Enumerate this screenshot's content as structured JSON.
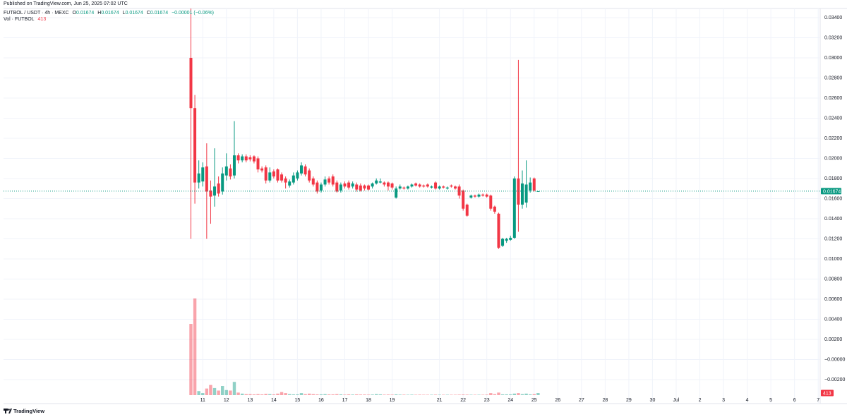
{
  "published": "Published on TradingView.com, Jun 25, 2025 07:02 UTC",
  "brand": "TradingView",
  "chart_data": {
    "type": "candlestick",
    "title": "FUTBOL / USDT · 4h · MEXC",
    "ohlc_keys": [
      "O",
      "H",
      "L",
      "C"
    ],
    "change": "−0.00001 (−0.06%)",
    "volume_title": "Vol · FUTBOL",
    "up_color": "#089981",
    "down_color": "#f23645",
    "grid": true,
    "open": [
      0.03,
      0.025,
      0.0176,
      0.0177,
      0.0192,
      0.0168,
      0.0163,
      0.0175,
      0.0167,
      0.0183,
      0.019,
      0.0183,
      0.0203,
      0.0198,
      0.0202,
      0.0201,
      0.0202,
      0.02,
      0.019,
      0.0191,
      0.0178,
      0.0187,
      0.0189,
      0.0184,
      0.018,
      0.0173,
      0.0176,
      0.018,
      0.0185,
      0.0192,
      0.0188,
      0.018,
      0.0176,
      0.0168,
      0.0174,
      0.018,
      0.0182,
      0.0176,
      0.0168,
      0.0175,
      0.0176,
      0.0172,
      0.0174,
      0.0173,
      0.0173,
      0.0173,
      0.0172,
      0.0175,
      0.0176,
      0.0176,
      0.0176,
      0.0175,
      0.0161,
      0.017,
      0.0171,
      0.017,
      0.0172,
      0.0175,
      0.0174,
      0.0173,
      0.0174,
      0.0171,
      0.0176,
      0.017,
      0.0172,
      0.017,
      0.0173,
      0.0172,
      0.0172,
      0.0168,
      0.0154,
      0.0161,
      0.0163,
      0.0162,
      0.0164,
      0.0164,
      0.0163,
      0.0152,
      0.0145,
      0.0113,
      0.0118,
      0.0119,
      0.0121,
      0.018,
      0.0154,
      0.0156,
      0.0168,
      0.018,
      0.01674
    ],
    "high": [
      0.0349,
      0.0263,
      0.0198,
      0.0196,
      0.0215,
      0.0178,
      0.021,
      0.0182,
      0.0191,
      0.0205,
      0.0194,
      0.0237,
      0.0205,
      0.0204,
      0.0204,
      0.0203,
      0.0203,
      0.0202,
      0.0192,
      0.0193,
      0.0191,
      0.0189,
      0.019,
      0.0186,
      0.0182,
      0.0179,
      0.0186,
      0.0188,
      0.0196,
      0.0194,
      0.019,
      0.0182,
      0.0178,
      0.0176,
      0.0182,
      0.0182,
      0.0184,
      0.0178,
      0.0176,
      0.0177,
      0.0178,
      0.0177,
      0.0176,
      0.0175,
      0.0174,
      0.0174,
      0.0176,
      0.018,
      0.018,
      0.0177,
      0.0177,
      0.0176,
      0.0172,
      0.0174,
      0.0172,
      0.0173,
      0.0175,
      0.0176,
      0.0175,
      0.0174,
      0.0175,
      0.0173,
      0.0177,
      0.0173,
      0.0173,
      0.0172,
      0.0174,
      0.0173,
      0.0174,
      0.0169,
      0.0155,
      0.0164,
      0.0164,
      0.0165,
      0.0165,
      0.0165,
      0.0164,
      0.0153,
      0.0146,
      0.0121,
      0.0121,
      0.0123,
      0.0182,
      0.0298,
      0.0188,
      0.0198,
      0.0181,
      0.0181,
      0.01674
    ],
    "low": [
      0.012,
      0.0155,
      0.017,
      0.0172,
      0.012,
      0.0135,
      0.0152,
      0.0162,
      0.0164,
      0.0178,
      0.0179,
      0.018,
      0.0195,
      0.0196,
      0.0196,
      0.0197,
      0.0195,
      0.0186,
      0.0186,
      0.0175,
      0.0176,
      0.018,
      0.0176,
      0.0176,
      0.017,
      0.0171,
      0.0174,
      0.0178,
      0.0183,
      0.0182,
      0.0176,
      0.0172,
      0.0165,
      0.0166,
      0.0172,
      0.0174,
      0.0172,
      0.0166,
      0.0166,
      0.017,
      0.0169,
      0.017,
      0.0167,
      0.0167,
      0.0168,
      0.0168,
      0.017,
      0.0174,
      0.0175,
      0.0172,
      0.0168,
      0.0169,
      0.016,
      0.0169,
      0.0169,
      0.0169,
      0.0171,
      0.0172,
      0.0171,
      0.0171,
      0.0171,
      0.017,
      0.0169,
      0.0169,
      0.017,
      0.0169,
      0.0171,
      0.0169,
      0.016,
      0.0148,
      0.0142,
      0.016,
      0.0161,
      0.0161,
      0.0162,
      0.0161,
      0.0148,
      0.0145,
      0.011,
      0.0112,
      0.0116,
      0.0118,
      0.012,
      0.0127,
      0.015,
      0.0151,
      0.0166,
      0.0167,
      0.01674
    ],
    "close": [
      0.025,
      0.0176,
      0.0185,
      0.0191,
      0.0167,
      0.0162,
      0.0172,
      0.0165,
      0.0185,
      0.0192,
      0.0182,
      0.0203,
      0.0198,
      0.0202,
      0.0198,
      0.0199,
      0.0197,
      0.0189,
      0.0188,
      0.0178,
      0.0186,
      0.0182,
      0.0178,
      0.0178,
      0.0176,
      0.0177,
      0.0183,
      0.0186,
      0.0193,
      0.0184,
      0.0178,
      0.0174,
      0.0167,
      0.0174,
      0.0179,
      0.0176,
      0.0174,
      0.0167,
      0.0174,
      0.0172,
      0.0171,
      0.0175,
      0.0169,
      0.0168,
      0.017,
      0.0169,
      0.0175,
      0.0178,
      0.0177,
      0.0174,
      0.0172,
      0.0171,
      0.017,
      0.0172,
      0.017,
      0.0172,
      0.0174,
      0.0173,
      0.0172,
      0.0172,
      0.0172,
      0.0172,
      0.017,
      0.0172,
      0.0171,
      0.0171,
      0.0172,
      0.017,
      0.0163,
      0.015,
      0.0143,
      0.0163,
      0.0162,
      0.0164,
      0.0163,
      0.0162,
      0.015,
      0.0147,
      0.0111,
      0.012,
      0.012,
      0.0121,
      0.018,
      0.0154,
      0.0175,
      0.0174,
      0.0176,
      0.0168,
      0.01674
    ],
    "volume": [
      14000,
      19000,
      800,
      400,
      1300,
      2000,
      1400,
      900,
      1800,
      1000,
      900,
      2600,
      500,
      300,
      200,
      200,
      150,
      200,
      150,
      250,
      200,
      150,
      300,
      600,
      400,
      200,
      150,
      150,
      400,
      200,
      300,
      200,
      150,
      150,
      200,
      150,
      150,
      200,
      150,
      100,
      150,
      120,
      150,
      120,
      120,
      100,
      120,
      200,
      150,
      100,
      120,
      100,
      150,
      100,
      100,
      80,
      100,
      80,
      100,
      80,
      80,
      80,
      100,
      80,
      80,
      80,
      80,
      80,
      100,
      120,
      100,
      80,
      80,
      80,
      80,
      100,
      400,
      200,
      500,
      150,
      150,
      150,
      300,
      400,
      200,
      300,
      150,
      200,
      413
    ],
    "xlim": [
      -47.5,
      159.5
    ],
    "xticks": [
      {
        "value": 3,
        "label": "11"
      },
      {
        "value": 9,
        "label": "12"
      },
      {
        "value": 15,
        "label": "13"
      },
      {
        "value": 21,
        "label": "14"
      },
      {
        "value": 27,
        "label": "15"
      },
      {
        "value": 33,
        "label": "16"
      },
      {
        "value": 39,
        "label": "17"
      },
      {
        "value": 45,
        "label": "18"
      },
      {
        "value": 51,
        "label": "19"
      },
      {
        "value": 63,
        "label": "21"
      },
      {
        "value": 69,
        "label": "22"
      },
      {
        "value": 75,
        "label": "23"
      },
      {
        "value": 81,
        "label": "24"
      },
      {
        "value": 87,
        "label": "25"
      },
      {
        "value": 93,
        "label": "26"
      },
      {
        "value": 99,
        "label": "27"
      },
      {
        "value": 105,
        "label": "28"
      },
      {
        "value": 111,
        "label": "29"
      },
      {
        "value": 117,
        "label": "30"
      },
      {
        "value": 123,
        "label": "Jul"
      },
      {
        "value": 129,
        "label": "2"
      },
      {
        "value": 135,
        "label": "3"
      },
      {
        "value": 141,
        "label": "4"
      },
      {
        "value": 147,
        "label": "5"
      },
      {
        "value": 153,
        "label": "6"
      },
      {
        "value": 159,
        "label": "7"
      }
    ],
    "ylim": [
      -0.00439,
      0.03491
    ],
    "yticks": [
      {
        "value": 0.034,
        "label": "0.03400"
      },
      {
        "value": 0.032,
        "label": "0.03200"
      },
      {
        "value": 0.03,
        "label": "0.03000"
      },
      {
        "value": 0.028,
        "label": "0.02800"
      },
      {
        "value": 0.026,
        "label": "0.02600"
      },
      {
        "value": 0.024,
        "label": "0.02400"
      },
      {
        "value": 0.022,
        "label": "0.02200"
      },
      {
        "value": 0.02,
        "label": "0.02000"
      },
      {
        "value": 0.018,
        "label": "0.01800"
      },
      {
        "value": 0.016,
        "label": "0.01600"
      },
      {
        "value": 0.014,
        "label": "0.01400"
      },
      {
        "value": 0.012,
        "label": "0.01200"
      },
      {
        "value": 0.01,
        "label": "0.01000"
      },
      {
        "value": 0.008,
        "label": "0.00800"
      },
      {
        "value": 0.006,
        "label": "0.00600"
      },
      {
        "value": 0.004,
        "label": "0.00400"
      },
      {
        "value": 0.002,
        "label": "0.00200"
      },
      {
        "value": 0,
        "label": "−0.00000"
      },
      {
        "value": -0.002,
        "label": "−0.00200"
      }
    ],
    "volume_ylim": [
      0,
      19000
    ]
  }
}
